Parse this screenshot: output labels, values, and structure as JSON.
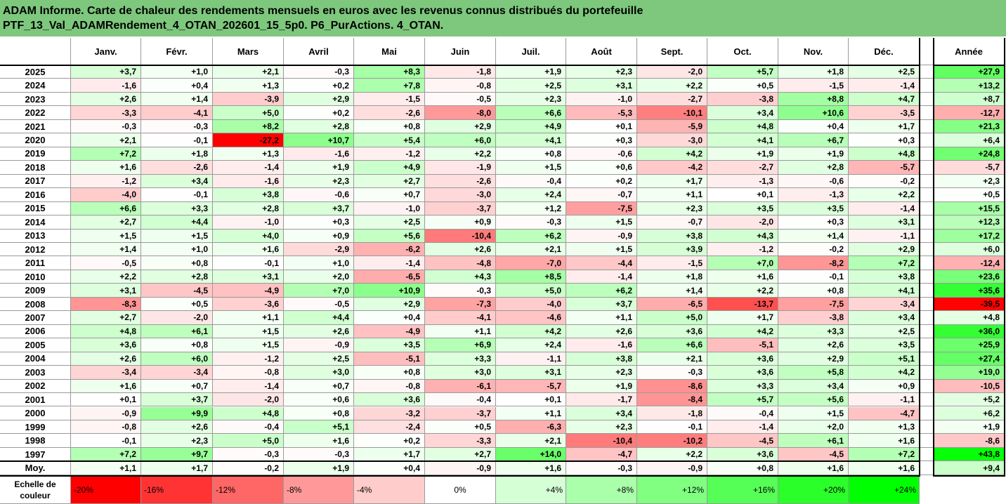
{
  "title_line1": "ADAM Informe. Carte de chaleur des rendements mensuels en euros avec les revenus connus distribués du portefeuille",
  "title_line2": "PTF_13_Val_ADAMRendement_4_OTAN_202601_15_5p0. P6_PurActions. 4_OTAN.",
  "corner_text": "",
  "watermark_text": "",
  "colors": {
    "title_bg": "#7dc87d",
    "positive_max": "#00ff00",
    "negative_max": "#ff0000",
    "neutral": "#ffffff"
  },
  "chart_data": {
    "type": "heatmap",
    "months": [
      "Janv.",
      "Févr.",
      "Mars",
      "Avril",
      "Mai",
      "Juin",
      "Juil.",
      "Août",
      "Sept.",
      "Oct.",
      "Nov.",
      "Déc."
    ],
    "year_header": "Année",
    "rows": [
      {
        "year": "2025",
        "values": [
          "+3,7",
          "+1,0",
          "+2,1",
          "-0,3",
          "+8,3",
          "-1,8",
          "+1,9",
          "+2,3",
          "-2,0",
          "+5,7",
          "+1,8",
          "+2,5"
        ],
        "annual": "+27,9"
      },
      {
        "year": "2024",
        "values": [
          "-1,6",
          "+0,4",
          "+1,3",
          "+0,2",
          "+7,8",
          "-0,8",
          "+2,5",
          "+3,1",
          "+2,2",
          "+0,5",
          "-1,5",
          "-1,4"
        ],
        "annual": "+13,2"
      },
      {
        "year": "2023",
        "values": [
          "+2,6",
          "+1,4",
          "-3,9",
          "+2,9",
          "-1,5",
          "-0,5",
          "+2,3",
          "-1,0",
          "-2,7",
          "-3,8",
          "+8,8",
          "+4,7"
        ],
        "annual": "+8,7"
      },
      {
        "year": "2022",
        "values": [
          "-3,3",
          "-4,1",
          "+5,0",
          "+0,2",
          "-2,6",
          "-8,0",
          "+6,6",
          "-5,3",
          "-10,1",
          "+3,4",
          "+10,6",
          "-3,5"
        ],
        "annual": "-12,7"
      },
      {
        "year": "2021",
        "values": [
          "-0,3",
          "-0,3",
          "+8,2",
          "+2,8",
          "+0,8",
          "+2,9",
          "+4,9",
          "+0,1",
          "-5,9",
          "+4,8",
          "+0,4",
          "+1,7"
        ],
        "annual": "+21,3"
      },
      {
        "year": "2020",
        "values": [
          "+2,1",
          "-0,1",
          "-27,2",
          "+10,7",
          "+5,4",
          "+6,0",
          "+4,1",
          "+0,3",
          "-3,0",
          "+4,1",
          "+6,7",
          "+0,3"
        ],
        "annual": "+6,4"
      },
      {
        "year": "2019",
        "values": [
          "+7,2",
          "+1,8",
          "+1,3",
          "-1,6",
          "-1,2",
          "+2,2",
          "+0,8",
          "-0,6",
          "+4,2",
          "+1,9",
          "+1,9",
          "+4,8"
        ],
        "annual": "+24,8"
      },
      {
        "year": "2018",
        "values": [
          "+1,6",
          "-2,6",
          "-1,4",
          "+1,9",
          "+4,9",
          "-1,9",
          "+1,5",
          "+0,6",
          "-4,2",
          "-2,7",
          "+2,8",
          "-5,7"
        ],
        "annual": "-5,7"
      },
      {
        "year": "2017",
        "values": [
          "-1,2",
          "+3,4",
          "-1,6",
          "+2,3",
          "+2,7",
          "-2,6",
          "-0,4",
          "+0,2",
          "+1,7",
          "-1,3",
          "-0,6",
          "-0,2"
        ],
        "annual": "+2,3"
      },
      {
        "year": "2016",
        "values": [
          "-4,0",
          "-0,1",
          "+3,8",
          "-0,6",
          "+0,7",
          "-3,0",
          "+2,4",
          "-0,7",
          "+1,1",
          "+0,1",
          "-1,3",
          "+2,2"
        ],
        "annual": "+0,5"
      },
      {
        "year": "2015",
        "values": [
          "+6,6",
          "+3,3",
          "+2,8",
          "+3,7",
          "-1,0",
          "-3,7",
          "+1,2",
          "-7,5",
          "+2,3",
          "+3,5",
          "+3,5",
          "-1,4"
        ],
        "annual": "+15,5"
      },
      {
        "year": "2014",
        "values": [
          "+2,7",
          "+4,4",
          "-1,0",
          "+0,3",
          "+2,5",
          "+0,9",
          "-0,3",
          "+1,5",
          "-0,7",
          "-2,0",
          "+0,3",
          "+3,1"
        ],
        "annual": "+12,3"
      },
      {
        "year": "2013",
        "values": [
          "+1,5",
          "+1,5",
          "+4,0",
          "+0,9",
          "+5,6",
          "-10,4",
          "+6,2",
          "-0,9",
          "+3,8",
          "+4,3",
          "+1,4",
          "-1,1"
        ],
        "annual": "+17,2"
      },
      {
        "year": "2012",
        "values": [
          "+1,4",
          "+1,0",
          "+1,6",
          "-2,9",
          "-6,2",
          "+2,6",
          "+2,1",
          "+1,5",
          "+3,9",
          "-1,2",
          "-0,2",
          "+2,9"
        ],
        "annual": "+6,0"
      },
      {
        "year": "2011",
        "values": [
          "-0,5",
          "+0,8",
          "-0,1",
          "+1,0",
          "-1,4",
          "-4,8",
          "-7,0",
          "-4,4",
          "-1,5",
          "+7,0",
          "-8,2",
          "+7,2"
        ],
        "annual": "-12,4"
      },
      {
        "year": "2010",
        "values": [
          "+2,2",
          "+2,8",
          "+3,1",
          "+2,0",
          "-6,5",
          "+4,3",
          "+8,5",
          "-1,4",
          "+1,8",
          "+1,6",
          "-0,1",
          "+3,8"
        ],
        "annual": "+23,6"
      },
      {
        "year": "2009",
        "values": [
          "+3,1",
          "-4,5",
          "-4,9",
          "+7,0",
          "+10,9",
          "-0,3",
          "+5,0",
          "+6,2",
          "+1,4",
          "+2,2",
          "+0,8",
          "+4,1"
        ],
        "annual": "+35,6"
      },
      {
        "year": "2008",
        "values": [
          "-8,3",
          "+0,5",
          "-3,6",
          "-0,5",
          "+2,9",
          "-7,3",
          "-4,0",
          "+3,7",
          "-6,5",
          "-13,7",
          "-7,5",
          "-3,4"
        ],
        "annual": "-39,5"
      },
      {
        "year": "2007",
        "values": [
          "+2,7",
          "-2,0",
          "+1,1",
          "+4,4",
          "+0,4",
          "-4,1",
          "-4,6",
          "+1,1",
          "+5,0",
          "+1,7",
          "-3,8",
          "+3,4"
        ],
        "annual": "+4,8"
      },
      {
        "year": "2006",
        "values": [
          "+4,8",
          "+6,1",
          "+1,5",
          "+2,6",
          "-4,9",
          "+1,1",
          "+4,2",
          "+2,6",
          "+3,6",
          "+4,2",
          "+3,3",
          "+2,5"
        ],
        "annual": "+36,0"
      },
      {
        "year": "2005",
        "values": [
          "+3,6",
          "+0,8",
          "+1,5",
          "-0,9",
          "+3,5",
          "+6,9",
          "+2,4",
          "-1,6",
          "+6,6",
          "-5,1",
          "+2,6",
          "+3,5"
        ],
        "annual": "+25,9"
      },
      {
        "year": "2004",
        "values": [
          "+2,6",
          "+6,0",
          "-1,2",
          "+2,5",
          "-5,1",
          "+3,3",
          "-1,1",
          "+3,8",
          "+2,1",
          "+3,6",
          "+2,9",
          "+5,1"
        ],
        "annual": "+27,4"
      },
      {
        "year": "2003",
        "values": [
          "-3,4",
          "-3,4",
          "-0,8",
          "+3,0",
          "+0,8",
          "+3,0",
          "+3,1",
          "+2,3",
          "-0,3",
          "+3,6",
          "+5,8",
          "+4,2"
        ],
        "annual": "+19,0"
      },
      {
        "year": "2002",
        "values": [
          "+1,6",
          "+0,7",
          "-1,4",
          "+0,7",
          "-0,8",
          "-6,1",
          "-5,7",
          "+1,9",
          "-8,6",
          "+3,3",
          "+3,4",
          "+0,9"
        ],
        "annual": "-10,5"
      },
      {
        "year": "2001",
        "values": [
          "+0,1",
          "+3,7",
          "-2,0",
          "+0,6",
          "+3,6",
          "-0,4",
          "+0,1",
          "-1,7",
          "-8,4",
          "+5,7",
          "+5,6",
          "-1,1"
        ],
        "annual": "+5,2"
      },
      {
        "year": "2000",
        "values": [
          "-0,9",
          "+9,9",
          "+4,8",
          "+0,8",
          "-3,2",
          "-3,7",
          "+1,1",
          "+3,4",
          "-1,8",
          "-0,4",
          "+1,5",
          "-4,7"
        ],
        "annual": "+6,2"
      },
      {
        "year": "1999",
        "values": [
          "-0,8",
          "+2,6",
          "-0,4",
          "+5,1",
          "-2,4",
          "+0,5",
          "-6,3",
          "+2,3",
          "-0,1",
          "-1,4",
          "+2,0",
          "+1,3"
        ],
        "annual": "+1,9"
      },
      {
        "year": "1998",
        "values": [
          "-0,1",
          "+2,3",
          "+5,0",
          "+1,6",
          "+0,2",
          "-3,3",
          "+2,1",
          "-10,4",
          "-10,2",
          "-4,5",
          "+6,1",
          "+1,6"
        ],
        "annual": "-8,6"
      },
      {
        "year": "1997",
        "values": [
          "+7,2",
          "+9,7",
          "-0,3",
          "-0,3",
          "+1,7",
          "+2,7",
          "+14,0",
          "-4,7",
          "+2,2",
          "+3,6",
          "-4,5",
          "+7,2"
        ],
        "annual": "+43,8"
      }
    ],
    "average": {
      "label": "Moy.",
      "values": [
        "+1,1",
        "+1,7",
        "-0,2",
        "+1,9",
        "+0,4",
        "-0,9",
        "+1,6",
        "-0,3",
        "-0,9",
        "+0,8",
        "+1,6",
        "+1,6"
      ],
      "annual": "+9,4"
    },
    "legend": {
      "label": "Echelle de couleur",
      "stops": [
        "-20%",
        "-16%",
        "-12%",
        "-8%",
        "-4%",
        "0%",
        "+4%",
        "+8%",
        "+12%",
        "+16%",
        "+20%",
        "+24%"
      ]
    }
  }
}
